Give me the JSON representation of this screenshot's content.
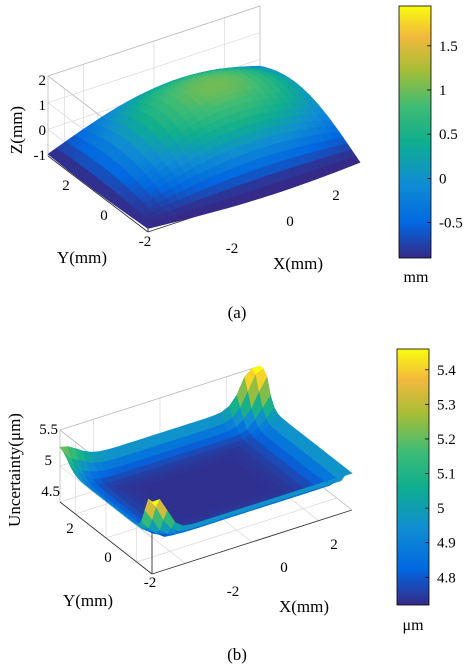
{
  "chart_data": [
    {
      "panel_label": "(a)",
      "type": "surface3d",
      "xlabel": "X(mm)",
      "ylabel": "Y(mm)",
      "zlabel": "Z(mm)",
      "xticks": [
        "-2",
        "0",
        "2"
      ],
      "yticks": [
        "2",
        "0",
        "-2"
      ],
      "zticks": [
        "2",
        "1",
        "0",
        "-1"
      ],
      "xlim": [
        -3,
        3
      ],
      "ylim": [
        -3,
        3
      ],
      "zlim": [
        -1,
        2
      ],
      "surface": "z ≈ 2·cos(x·π/6)·cos(y·π/6) − 1 (peak ≈ 1.9 near x,y ≈ 0..1, minimum ≈ −0.9 at corners)",
      "colorbar": {
        "ticks": [
          "1.5",
          "1",
          "0.5",
          "0",
          "-0.5"
        ],
        "tick_values": [
          1.5,
          1,
          0.5,
          0,
          -0.5
        ],
        "range": [
          -0.9,
          1.95
        ],
        "unit": "mm",
        "colormap": "parula"
      },
      "grid": true
    },
    {
      "panel_label": "(b)",
      "type": "surface3d",
      "xlabel": "X(mm)",
      "ylabel": "Y(mm)",
      "zlabel": "Uncertainty(μm)",
      "xticks": [
        "-2",
        "0",
        "2"
      ],
      "yticks": [
        "2",
        "0",
        "-2"
      ],
      "zticks": [
        "5.5",
        "5",
        "4.5"
      ],
      "xlim": [
        -3,
        3
      ],
      "ylim": [
        -3,
        3
      ],
      "zlim": [
        4.5,
        5.5
      ],
      "surface": "bowl-shaped uncertainty ≈ 4.72 at centre rising toward edges; corner spikes up to ≈ 5.45 μm",
      "colorbar": {
        "ticks": [
          "5.4",
          "5.3",
          "5.2",
          "5.1",
          "5",
          "4.9",
          "4.8"
        ],
        "tick_values": [
          5.4,
          5.3,
          5.2,
          5.1,
          5.0,
          4.9,
          4.8
        ],
        "range": [
          4.72,
          5.46
        ],
        "unit": "μm",
        "colormap": "parula"
      },
      "grid": true
    }
  ],
  "colors": {
    "parula_stops": [
      "#352a87",
      "#0268e1",
      "#108ed2",
      "#0fae8f",
      "#3ebc74",
      "#a9bd36",
      "#f2b93d",
      "#f9fb0e"
    ]
  }
}
